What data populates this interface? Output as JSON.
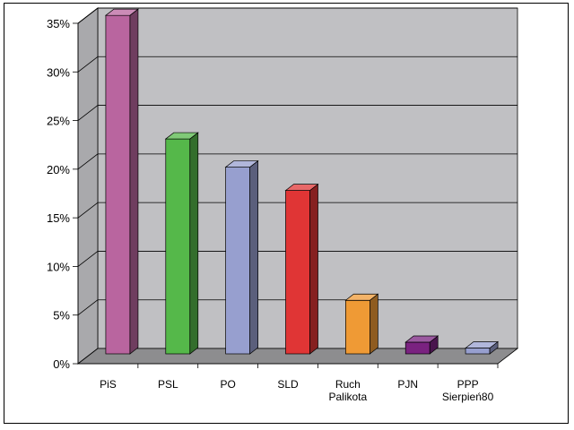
{
  "chart_data": {
    "type": "bar",
    "title": "",
    "xlabel": "",
    "ylabel": "",
    "categories": [
      [
        "PiS"
      ],
      [
        "PSL"
      ],
      [
        "PO"
      ],
      [
        "SLD"
      ],
      [
        "Ruch",
        "Palikota"
      ],
      [
        "PJN"
      ],
      [
        "PPP",
        "Sierpień80"
      ]
    ],
    "values": [
      34.8,
      22.1,
      19.2,
      16.8,
      5.5,
      1.2,
      0.6
    ],
    "yticks": [
      "0%",
      "5%",
      "10%",
      "15%",
      "20%",
      "25%",
      "30%",
      "35%"
    ],
    "ylim": [
      0,
      35
    ],
    "grid": true,
    "legend": "none",
    "colors": [
      "#b9659f",
      "#55b84a",
      "#979fcf",
      "#e03535",
      "#ef9a35",
      "#7a2280",
      "#979fcf"
    ],
    "style": {
      "wall": "#c0c0c3",
      "floor": "#8d8d8f",
      "gridline": "#000000"
    }
  }
}
